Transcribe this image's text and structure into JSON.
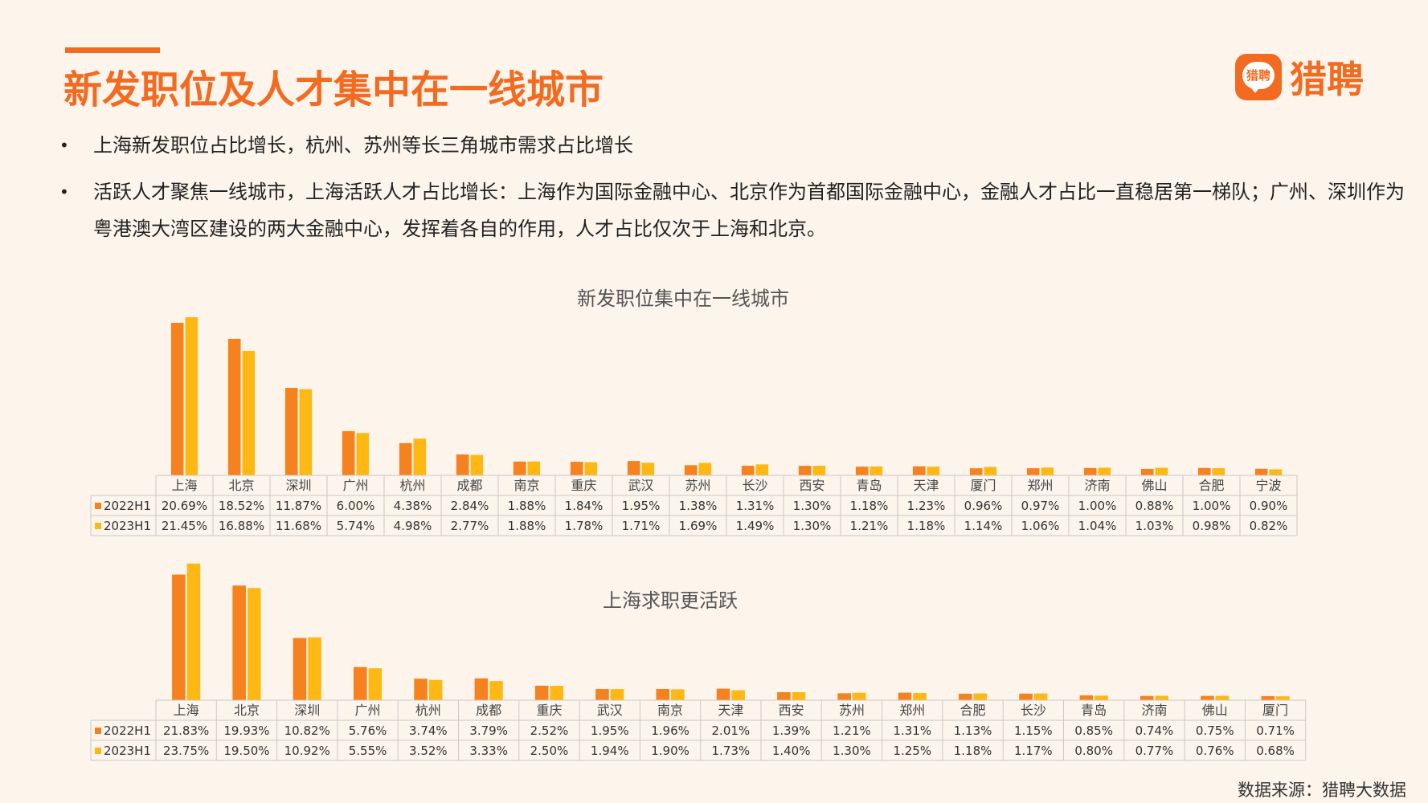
{
  "page": {
    "title": "新发职位及人才集中在一线城市",
    "bullets": [
      "上海新发职位占比增长，杭州、苏州等长三角城市需求占比增长",
      "活跃人才聚焦一线城市，上海活跃人才占比增长：上海作为国际金融中心、北京作为首都国际金融中心，金融人才占比一直稳居第一梯队；广州、深圳作为粤港澳大湾区建设的两大金融中心，发挥着各自的作用，人才占比仅次于上海和北京。"
    ],
    "logo_badge": "猎聘",
    "logo_text": "猎聘",
    "source": "数据来源：猎聘大数据"
  },
  "colors": {
    "series_2022": "#f5821f",
    "series_2023": "#fdb813",
    "accent": "#f26b21"
  },
  "chart_data": [
    {
      "type": "bar",
      "title": "新发职位集中在一线城市",
      "categories": [
        "上海",
        "北京",
        "深圳",
        "广州",
        "杭州",
        "成都",
        "南京",
        "重庆",
        "武汉",
        "苏州",
        "长沙",
        "西安",
        "青岛",
        "天津",
        "厦门",
        "郑州",
        "济南",
        "佛山",
        "合肥",
        "宁波"
      ],
      "series": [
        {
          "name": "2022H1",
          "values": [
            20.69,
            18.52,
            11.87,
            6.0,
            4.38,
            2.84,
            1.88,
            1.84,
            1.95,
            1.38,
            1.31,
            1.3,
            1.18,
            1.23,
            0.96,
            0.97,
            1.0,
            0.88,
            1.0,
            0.9
          ],
          "labels": [
            "20.69%",
            "18.52%",
            "11.87%",
            "6.00%",
            "4.38%",
            "2.84%",
            "1.88%",
            "1.84%",
            "1.95%",
            "1.38%",
            "1.31%",
            "1.30%",
            "1.18%",
            "1.23%",
            "0.96%",
            "0.97%",
            "1.00%",
            "0.88%",
            "1.00%",
            "0.90%"
          ]
        },
        {
          "name": "2023H1",
          "values": [
            21.45,
            16.88,
            11.68,
            5.74,
            4.98,
            2.77,
            1.88,
            1.78,
            1.71,
            1.69,
            1.49,
            1.3,
            1.21,
            1.18,
            1.14,
            1.06,
            1.04,
            1.03,
            0.98,
            0.82
          ],
          "labels": [
            "21.45%",
            "16.88%",
            "11.68%",
            "5.74%",
            "4.98%",
            "2.77%",
            "1.88%",
            "1.78%",
            "1.71%",
            "1.69%",
            "1.49%",
            "1.30%",
            "1.21%",
            "1.18%",
            "1.14%",
            "1.06%",
            "1.04%",
            "1.03%",
            "0.98%",
            "0.82%"
          ]
        }
      ]
    },
    {
      "type": "bar",
      "title": "上海求职更活跃",
      "categories": [
        "上海",
        "北京",
        "深圳",
        "广州",
        "杭州",
        "成都",
        "重庆",
        "武汉",
        "南京",
        "天津",
        "西安",
        "苏州",
        "郑州",
        "合肥",
        "长沙",
        "青岛",
        "济南",
        "佛山",
        "厦门"
      ],
      "series": [
        {
          "name": "2022H1",
          "values": [
            21.83,
            19.93,
            10.82,
            5.76,
            3.74,
            3.79,
            2.52,
            1.95,
            1.96,
            2.01,
            1.39,
            1.21,
            1.31,
            1.13,
            1.15,
            0.85,
            0.74,
            0.75,
            0.71
          ],
          "labels": [
            "21.83%",
            "19.93%",
            "10.82%",
            "5.76%",
            "3.74%",
            "3.79%",
            "2.52%",
            "1.95%",
            "1.96%",
            "2.01%",
            "1.39%",
            "1.21%",
            "1.31%",
            "1.13%",
            "1.15%",
            "0.85%",
            "0.74%",
            "0.75%",
            "0.71%"
          ]
        },
        {
          "name": "2023H1",
          "values": [
            23.75,
            19.5,
            10.92,
            5.55,
            3.52,
            3.33,
            2.5,
            1.94,
            1.9,
            1.73,
            1.4,
            1.3,
            1.25,
            1.18,
            1.17,
            0.8,
            0.77,
            0.76,
            0.68
          ],
          "labels": [
            "23.75%",
            "19.50%",
            "10.92%",
            "5.55%",
            "3.52%",
            "3.33%",
            "2.50%",
            "1.94%",
            "1.90%",
            "1.73%",
            "1.40%",
            "1.30%",
            "1.25%",
            "1.18%",
            "1.17%",
            "0.80%",
            "0.77%",
            "0.76%",
            "0.68%"
          ]
        }
      ]
    }
  ]
}
